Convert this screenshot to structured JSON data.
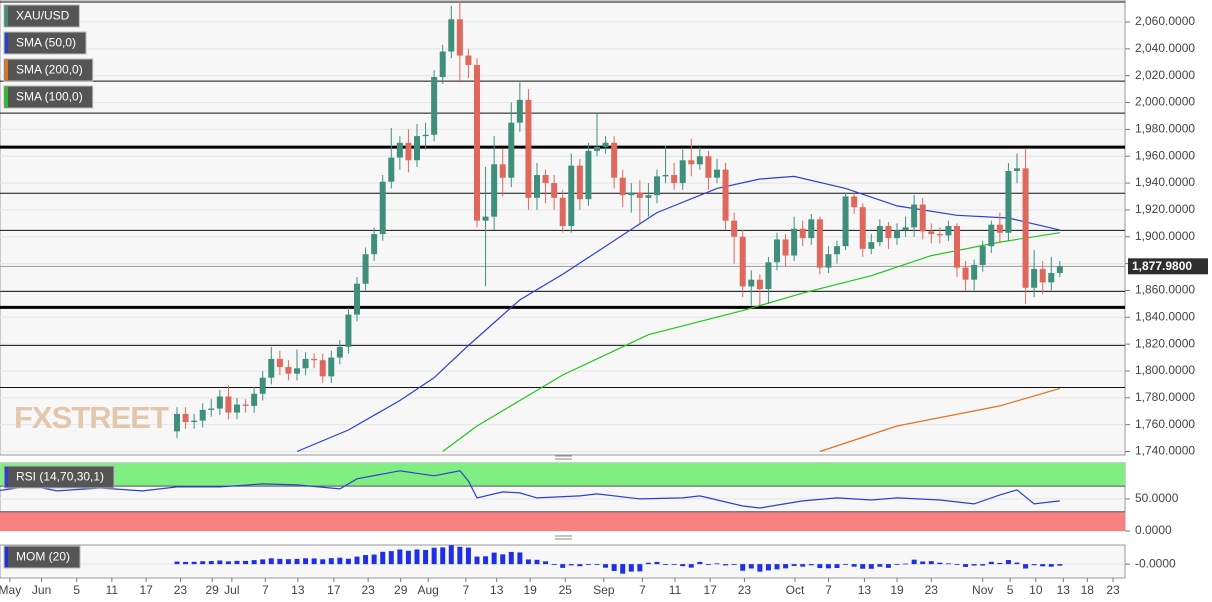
{
  "chart_data": [
    {
      "type": "candlestick",
      "name": "XAU/USD",
      "color_up": "#3f8f7c",
      "color_down": "#e0675c",
      "watermark": "FXSTREET",
      "xlim": [
        -20.65,
        110.6
      ],
      "ylim": [
        1737.4,
        2076.4
      ],
      "yticks": [
        {
          "value": 1740,
          "label": "1,740.0000"
        },
        {
          "value": 1760,
          "label": "1,760.0000"
        },
        {
          "value": 1780,
          "label": "1,780.0000"
        },
        {
          "value": 1800,
          "label": "1,800.0000"
        },
        {
          "value": 1820,
          "label": "1,820.0000"
        },
        {
          "value": 1840,
          "label": "1,840.0000"
        },
        {
          "value": 1860,
          "label": "1,860.0000"
        },
        {
          "value": 1880,
          "label": "1,880.0000"
        },
        {
          "value": 1900,
          "label": "1,900.0000"
        },
        {
          "value": 1920,
          "label": "1,920.0000"
        },
        {
          "value": 1940,
          "label": "1,940.0000"
        },
        {
          "value": 1960,
          "label": "1,960.0000"
        },
        {
          "value": 1980,
          "label": "1,980.0000"
        },
        {
          "value": 2000,
          "label": "2,000.0000"
        },
        {
          "value": 2020,
          "label": "2,020.0000"
        },
        {
          "value": 2040,
          "label": "2,040.0000"
        },
        {
          "value": 2060,
          "label": "2,060.0000"
        }
      ],
      "levels": [
        2074.9,
        2016,
        1992.1,
        1932.4,
        1904.8,
        1859.3,
        1819.1,
        1787.7
      ],
      "thick_levels": [
        1966.8,
        1847.4
      ],
      "last_price": {
        "value": 1877.98,
        "label": "1,877.9800"
      },
      "open": [
        1755,
        1768,
        1762,
        1763,
        1771,
        1772,
        1781,
        1769,
        1775,
        1774,
        1783,
        1795,
        1809,
        1803,
        1798,
        1802,
        1809,
        1808,
        1796,
        1810,
        1818,
        1842,
        1865,
        1887,
        1902,
        1941,
        1959,
        1970,
        1957,
        1975,
        1976,
        2019,
        2038,
        2062,
        2035,
        2028,
        1912,
        1915,
        1954,
        1944,
        1985,
        2002,
        1929,
        1946,
        1940,
        1929,
        1908,
        1953,
        1928,
        1964,
        1967,
        1970,
        1944,
        1931,
        1933,
        1929,
        1931,
        1945,
        1946,
        1940,
        1957,
        1954,
        1960,
        1944,
        1950,
        1912,
        1900,
        1863,
        1868,
        1861,
        1881,
        1898,
        1886,
        1906,
        1899,
        1913,
        1877,
        1887,
        1893,
        1930,
        1922,
        1891,
        1896,
        1908,
        1899,
        1905,
        1907,
        1924,
        1904,
        1902,
        1901,
        1908,
        1877,
        1868,
        1879,
        1893,
        1909,
        1903,
        1949,
        1951,
        1862,
        1876,
        1866,
        1873
      ],
      "high": [
        1773,
        1773,
        1768,
        1776,
        1779,
        1786,
        1789,
        1780,
        1779,
        1788,
        1800,
        1818,
        1815,
        1808,
        1816,
        1814,
        1813,
        1813,
        1815,
        1823,
        1847,
        1870,
        1892,
        1907,
        1946,
        1981,
        1975,
        1980,
        1984,
        1985,
        2024,
        2043,
        2072,
        2075,
        2040,
        2033,
        1952,
        1975,
        1966,
        2000,
        2015,
        2010,
        1955,
        1950,
        1946,
        1935,
        1962,
        1958,
        1970,
        1992,
        1975,
        1975,
        1950,
        1940,
        1942,
        1940,
        1950,
        1968,
        1955,
        1965,
        1973,
        1967,
        1964,
        1958,
        1955,
        1918,
        1905,
        1875,
        1872,
        1885,
        1903,
        1902,
        1915,
        1912,
        1917,
        1915,
        1893,
        1897,
        1933,
        1933,
        1925,
        1902,
        1913,
        1911,
        1910,
        1915,
        1931,
        1929,
        1910,
        1907,
        1912,
        1910,
        1882,
        1883,
        1897,
        1912,
        1918,
        1955,
        1962,
        1966,
        1890,
        1882,
        1885,
        1882
      ],
      "low": [
        1750,
        1757,
        1757,
        1758,
        1766,
        1767,
        1764,
        1764,
        1769,
        1769,
        1778,
        1790,
        1797,
        1793,
        1793,
        1797,
        1802,
        1791,
        1791,
        1805,
        1813,
        1837,
        1860,
        1882,
        1897,
        1936,
        1950,
        1948,
        1952,
        1965,
        1971,
        2014,
        2033,
        2015,
        2018,
        1907,
        1863,
        1905,
        1930,
        1937,
        1978,
        1920,
        1920,
        1925,
        1920,
        1903,
        1903,
        1920,
        1923,
        1960,
        1962,
        1936,
        1922,
        1918,
        1910,
        1915,
        1925,
        1940,
        1935,
        1935,
        1945,
        1950,
        1935,
        1940,
        1905,
        1880,
        1855,
        1849,
        1849,
        1850,
        1875,
        1878,
        1882,
        1893,
        1894,
        1872,
        1873,
        1880,
        1890,
        1917,
        1885,
        1887,
        1893,
        1891,
        1894,
        1900,
        1900,
        1898,
        1895,
        1895,
        1897,
        1870,
        1860,
        1860,
        1874,
        1888,
        1895,
        1897,
        1940,
        1850,
        1855,
        1857,
        1860,
        1870
      ],
      "close": [
        1768,
        1762,
        1763,
        1771,
        1772,
        1781,
        1769,
        1775,
        1774,
        1783,
        1795,
        1809,
        1803,
        1798,
        1802,
        1809,
        1808,
        1796,
        1810,
        1818,
        1842,
        1865,
        1887,
        1902,
        1941,
        1959,
        1970,
        1957,
        1975,
        1976,
        2019,
        2038,
        2062,
        2035,
        2028,
        1912,
        1915,
        1954,
        1944,
        1985,
        2002,
        1929,
        1946,
        1940,
        1929,
        1908,
        1953,
        1928,
        1964,
        1967,
        1970,
        1944,
        1931,
        1933,
        1929,
        1931,
        1945,
        1946,
        1940,
        1957,
        1954,
        1960,
        1944,
        1950,
        1912,
        1900,
        1863,
        1868,
        1861,
        1881,
        1898,
        1886,
        1906,
        1899,
        1913,
        1877,
        1887,
        1893,
        1930,
        1922,
        1891,
        1896,
        1908,
        1899,
        1905,
        1907,
        1924,
        1904,
        1902,
        1901,
        1908,
        1877,
        1868,
        1879,
        1893,
        1909,
        1903,
        1949,
        1951,
        1862,
        1876,
        1866,
        1873,
        1877.98
      ],
      "lines": [
        {
          "name": "SMA (50,0)",
          "color": "#2b3fd6",
          "x": [
            14,
            20,
            26,
            30,
            34,
            40,
            45,
            50,
            56,
            63,
            68,
            72,
            78,
            84,
            91,
            97,
            103
          ],
          "values": [
            1740,
            1756,
            1778,
            1795,
            1819,
            1853,
            1872,
            1893,
            1918,
            1936,
            1943,
            1945,
            1936,
            1923,
            1916,
            1914,
            1905
          ]
        },
        {
          "name": "SMA (200,0)",
          "color": "#e8711c",
          "x": [
            75,
            84,
            96,
            103
          ],
          "values": [
            1740,
            1759,
            1774,
            1787
          ]
        },
        {
          "name": "SMA (100,0)",
          "color": "#22c41e",
          "x": [
            31,
            35,
            45,
            55,
            66,
            73,
            81,
            88,
            96,
            103
          ],
          "values": [
            1740,
            1759,
            1797,
            1827,
            1845,
            1858,
            1871,
            1886,
            1896,
            1903
          ]
        }
      ]
    },
    {
      "type": "line",
      "name": "RSI (14,70,30,1)",
      "color": "#2b3fd6",
      "overbought": 70,
      "oversold": 30,
      "overbought_color": "#80ee80",
      "oversold_color": "#f88080",
      "ylim": [
        0,
        106
      ],
      "yticks": [
        {
          "value": 50,
          "label": "50.0000"
        },
        {
          "value": 0,
          "label": "0.0000"
        }
      ],
      "x": [
        -21,
        -17,
        -14,
        -9,
        -4,
        0,
        5,
        10,
        14,
        19,
        21,
        26,
        30,
        33,
        34,
        35,
        38,
        40,
        42,
        47,
        49,
        54,
        59,
        61,
        66,
        68,
        73,
        77,
        81,
        84,
        89,
        93,
        96,
        98,
        100,
        103
      ],
      "values": [
        62.5,
        70.3,
        62.5,
        67,
        62.5,
        68.8,
        68.8,
        73.4,
        71.9,
        65.6,
        81.3,
        93.8,
        86,
        93.8,
        78,
        51.6,
        60.9,
        59.4,
        51.6,
        54.7,
        57.8,
        50,
        51.6,
        54.7,
        39,
        35.9,
        46.9,
        51.6,
        48.4,
        51.6,
        48.4,
        42.2,
        56.3,
        64,
        42.2,
        46.9
      ]
    },
    {
      "type": "bar",
      "name": "MOM (20)",
      "color": "#1f2fe6",
      "ylim": [
        -190,
        262
      ],
      "yticks": [
        {
          "value": 0,
          "label": "-0.0000"
        }
      ],
      "values": [
        35,
        30,
        32,
        40,
        42,
        50,
        38,
        45,
        44,
        55,
        65,
        80,
        72,
        68,
        72,
        80,
        78,
        66,
        82,
        88,
        74,
        103,
        124,
        131,
        169,
        178,
        201,
        182,
        201,
        193,
        224,
        229,
        259,
        237,
        226,
        103,
        107,
        158,
        134,
        167,
        160,
        64,
        59,
        38,
        -12,
        -51,
        -17,
        -29,
        -11,
        -9,
        -49,
        -94,
        -131,
        -102,
        -99,
        19,
        30,
        -8,
        -4,
        -28,
        -48,
        31,
        -2,
        10,
        -17,
        -8,
        -90,
        -60,
        -103,
        -86,
        -72,
        -58,
        -25,
        -34,
        -16,
        -54,
        -58,
        -53,
        -10,
        -35,
        -63,
        -64,
        -36,
        -51,
        -7,
        7,
        61,
        36,
        41,
        20,
        10,
        -9,
        -38,
        -20,
        -20,
        32,
        16,
        56,
        21,
        -60,
        -15,
        -30,
        -35,
        -21
      ],
      "xticks": [
        {
          "value": -19.5,
          "label": "May"
        },
        {
          "value": -15.8,
          "label": "Jun"
        },
        {
          "value": -11.7,
          "label": "5"
        },
        {
          "value": -7.6,
          "label": "11"
        },
        {
          "value": -3.6,
          "label": "17"
        },
        {
          "value": 0.4,
          "label": "23"
        },
        {
          "value": 4.1,
          "label": "29"
        },
        {
          "value": 6.4,
          "label": "Jul"
        },
        {
          "value": 10.3,
          "label": "7"
        },
        {
          "value": 14.1,
          "label": "13"
        },
        {
          "value": 18.3,
          "label": "17"
        },
        {
          "value": 22.3,
          "label": "23"
        },
        {
          "value": 26.1,
          "label": "29"
        },
        {
          "value": 29.3,
          "label": "Aug"
        },
        {
          "value": 33.7,
          "label": "7"
        },
        {
          "value": 37.3,
          "label": "13"
        },
        {
          "value": 41.2,
          "label": "19"
        },
        {
          "value": 45.3,
          "label": "25"
        },
        {
          "value": 49.8,
          "label": "Sep"
        },
        {
          "value": 54.3,
          "label": "7"
        },
        {
          "value": 58.1,
          "label": "11"
        },
        {
          "value": 62.2,
          "label": "17"
        },
        {
          "value": 66.2,
          "label": "23"
        },
        {
          "value": 72.1,
          "label": "Oct"
        },
        {
          "value": 76,
          "label": "7"
        },
        {
          "value": 80.2,
          "label": "13"
        },
        {
          "value": 84,
          "label": "19"
        },
        {
          "value": 88,
          "label": "23"
        },
        {
          "value": 94,
          "label": "Nov"
        },
        {
          "value": 97.2,
          "label": "5"
        },
        {
          "value": 100.2,
          "label": "10"
        },
        {
          "value": 103.4,
          "label": "13"
        },
        {
          "value": 106.2,
          "label": "18"
        },
        {
          "value": 109.2,
          "label": "23"
        }
      ]
    }
  ]
}
